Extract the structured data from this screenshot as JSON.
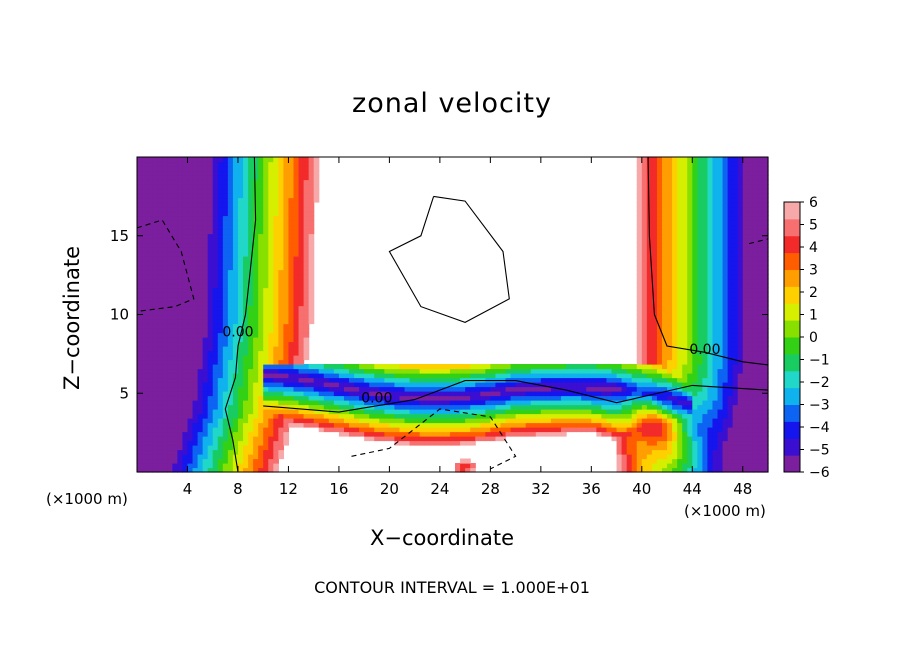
{
  "chart_data": {
    "type": "heatmap",
    "title": "zonal velocity",
    "xlabel": "X−coordinate",
    "ylabel": "Z−coordinate",
    "x_unit": "(×1000 m)",
    "x_unit_right": "(×1000 m)",
    "footer": "CONTOUR INTERVAL = 1.000E+01",
    "xlim": [
      0,
      50
    ],
    "ylim": [
      0,
      20
    ],
    "x_ticks": [
      4,
      8,
      12,
      16,
      20,
      24,
      28,
      32,
      36,
      40,
      44,
      48
    ],
    "y_ticks": [
      5,
      10,
      15
    ],
    "colorbar_ticks": [
      6,
      5,
      4,
      3,
      2,
      1,
      0,
      -1,
      -2,
      -3,
      -4,
      -5,
      -6
    ],
    "colorbar_range": [
      -6,
      6
    ],
    "contour_labels": [
      {
        "text": "0.00",
        "x": 8,
        "y": 8.6
      },
      {
        "text": "0.00",
        "x": 19,
        "y": 4.4
      },
      {
        "text": "0.00",
        "x": 45,
        "y": 7.5
      }
    ],
    "colors": {
      "ramp": [
        "#7b1f9e",
        "#3a0fd1",
        "#1515ee",
        "#0d63f2",
        "#10b2ee",
        "#20d7c8",
        "#19cc62",
        "#33d116",
        "#88e000",
        "#d6ee00",
        "#ffd000",
        "#ff9e00",
        "#ff5d00",
        "#f22a2a",
        "#f76f6f",
        "#f7a9a9"
      ]
    }
  }
}
